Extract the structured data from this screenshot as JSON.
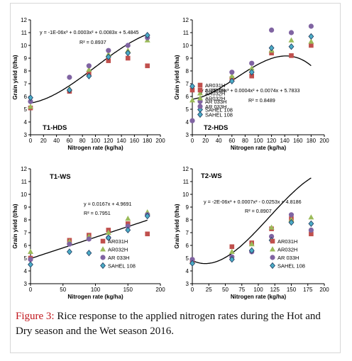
{
  "caption": {
    "label": "Figure 3:",
    "text": " Rice response to the applied nitrogen rates during the Hot and Dry season and the Wet season 2016."
  },
  "series_styles": [
    {
      "name": "AR031H",
      "color": "#c0504d",
      "marker": "square"
    },
    {
      "name": "AR032H",
      "color": "#9bbb59",
      "marker": "triangle"
    },
    {
      "name": "AR 033H",
      "color": "#8064a2",
      "marker": "circle"
    },
    {
      "name": "SAHEL 108",
      "color": "#4bacc6",
      "marker": "diamond"
    }
  ],
  "trend_color": "#000000",
  "chart_data": [
    {
      "type": "scatter",
      "title": "T1-HDS",
      "xlabel": "Nitrogen rate (kg/ha)",
      "ylabel": "Grain yield (t/ha)",
      "xlim": [
        0,
        200
      ],
      "ylim": [
        3,
        12
      ],
      "xticks": [
        "0",
        "20",
        "40",
        "60",
        "80",
        "100",
        "120",
        "140",
        "160",
        "180",
        "200"
      ],
      "yticks": [
        "3",
        "4",
        "5",
        "6",
        "7",
        "8",
        "9",
        "10",
        "11",
        "12"
      ],
      "grid": false,
      "x": [
        0,
        60,
        90,
        120,
        150,
        180
      ],
      "series": [
        {
          "name": "AR031H",
          "values": [
            5.1,
            6.4,
            7.8,
            8.8,
            9.0,
            8.4
          ]
        },
        {
          "name": "AR032H",
          "values": [
            5.2,
            6.6,
            8.1,
            9.3,
            9.6,
            10.4
          ]
        },
        {
          "name": "AR 033H",
          "values": [
            5.6,
            7.5,
            8.4,
            9.6,
            10.0,
            10.6
          ]
        },
        {
          "name": "SAHEL 108",
          "values": [
            5.9,
            6.5,
            7.6,
            9.1,
            9.4,
            10.8
          ]
        }
      ],
      "trend": {
        "coefficients": [
          5.4845,
          0.0083,
          0.0003,
          -1e-06
        ],
        "equation": "y = -1E-06x³ + 0.0003x² + 0.0083x + 5.4845",
        "r2": "R² = 0.8937"
      }
    },
    {
      "type": "scatter",
      "title": "T2-HDS",
      "xlabel": "Nitrogen rate (kg/ha)",
      "ylabel": "Grain yield (t/ha)",
      "xlim": [
        0,
        200
      ],
      "ylim": [
        3,
        12
      ],
      "xticks": [
        "0",
        "20",
        "40",
        "60",
        "80",
        "100",
        "120",
        "140",
        "160",
        "180",
        "200"
      ],
      "yticks": [
        "3",
        "4",
        "5",
        "6",
        "7",
        "8",
        "9",
        "10",
        "11",
        "12"
      ],
      "grid": false,
      "x": [
        0,
        60,
        90,
        120,
        150,
        180
      ],
      "series": [
        {
          "name": "AR031H",
          "values": [
            6.5,
            7.4,
            7.6,
            9.4,
            9.2,
            10.0
          ]
        },
        {
          "name": "AR032H",
          "values": [
            5.7,
            7.6,
            8.2,
            9.6,
            10.4,
            10.3
          ]
        },
        {
          "name": "AR 033H",
          "values": [
            4.1,
            7.9,
            8.6,
            11.2,
            11.0,
            11.5
          ]
        },
        {
          "name": "SAHEL 108",
          "values": [
            6.8,
            7.2,
            7.9,
            9.8,
            9.9,
            10.7
          ]
        }
      ],
      "trend": {
        "coefficients": [
          5.7833,
          0.0074,
          0.0004,
          -2e-06
        ],
        "equation": "y = -2E-06x³ + 0.0004x² + 0.0074x + 5.7833",
        "r2": "R² = 0.8489"
      }
    },
    {
      "type": "scatter",
      "title": "T1-WS",
      "xlabel": "Nitrogen rate (kg/ha)",
      "ylabel": "Grain yield (t/ha)",
      "xlim": [
        0,
        200
      ],
      "ylim": [
        3,
        12
      ],
      "xticks": [
        "0",
        "50",
        "100",
        "150",
        "200"
      ],
      "yticks": [
        "3",
        "4",
        "5",
        "6",
        "7",
        "8",
        "9",
        "10",
        "11",
        "12"
      ],
      "grid": false,
      "x": [
        0,
        60,
        90,
        120,
        150,
        180
      ],
      "series": [
        {
          "name": "AR031H",
          "values": [
            5.0,
            6.4,
            6.8,
            7.2,
            7.7,
            6.9
          ]
        },
        {
          "name": "AR032H",
          "values": [
            5.5,
            6.3,
            6.7,
            7.0,
            8.1,
            8.6
          ]
        },
        {
          "name": "AR 033H",
          "values": [
            4.9,
            6.1,
            6.5,
            6.6,
            7.5,
            8.4
          ]
        },
        {
          "name": "SAHEL 108",
          "values": [
            4.5,
            5.5,
            5.4,
            6.6,
            7.2,
            8.3
          ]
        }
      ],
      "trend": {
        "coefficients": [
          4.9691,
          0.0167
        ],
        "equation": "y = 0.0167x + 4.9691",
        "r2": "R² = 0.7951"
      }
    },
    {
      "type": "scatter",
      "title": "T2-WS",
      "xlabel": "Nitrogen rate (kg/ha)",
      "ylabel": "Grain yield (t/ha)",
      "xlim": [
        0,
        200
      ],
      "ylim": [
        3,
        12
      ],
      "xticks": [
        "0",
        "25",
        "50",
        "75",
        "100",
        "125",
        "150",
        "175",
        "200"
      ],
      "yticks": [
        "3",
        "4",
        "5",
        "6",
        "7",
        "8",
        "9",
        "10",
        "11",
        "12"
      ],
      "grid": false,
      "x": [
        0,
        60,
        90,
        120,
        150,
        180
      ],
      "series": [
        {
          "name": "AR031H",
          "values": [
            4.8,
            5.9,
            6.2,
            7.3,
            8.1,
            6.9
          ]
        },
        {
          "name": "AR032H",
          "values": [
            4.7,
            5.5,
            6.1,
            7.4,
            8.0,
            8.2
          ]
        },
        {
          "name": "AR 033H",
          "values": [
            4.9,
            5.1,
            5.5,
            6.7,
            8.4,
            7.2
          ]
        },
        {
          "name": "SAHEL 108",
          "values": [
            4.6,
            4.9,
            5.6,
            6.4,
            7.8,
            7.7
          ]
        }
      ],
      "trend": {
        "coefficients": [
          4.8186,
          -0.0253,
          0.0007,
          -2e-06
        ],
        "equation": "y = -2E-06x³ + 0.0007x² - 0.0253x + 4.8186",
        "r2": "R² = 0.8907"
      }
    }
  ]
}
